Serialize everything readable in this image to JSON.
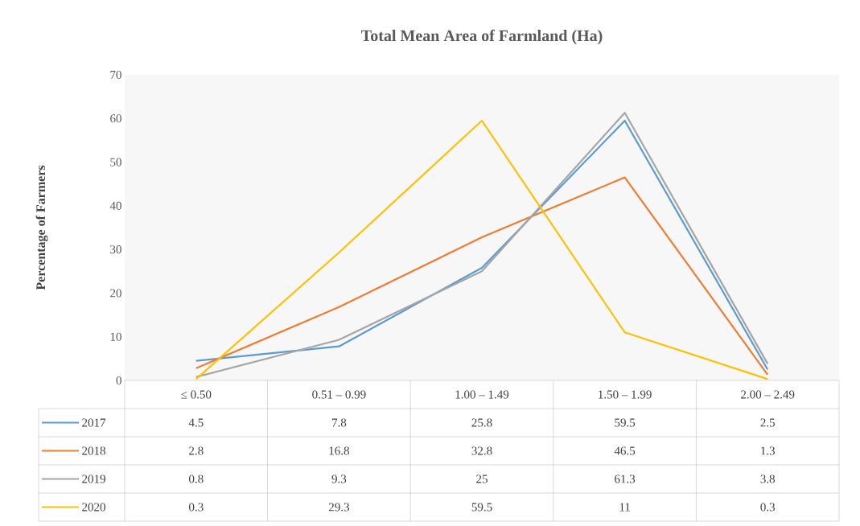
{
  "chart_data": {
    "type": "line",
    "title": "Total Mean Area of Farmland (Ha)",
    "ylabel": "Percentage of Farmers",
    "categories": [
      "≤ 0.50",
      "0.51 – 0.99",
      "1.00 – 1.49",
      "1.50 – 1.99",
      "2.00 – 2.49"
    ],
    "series": [
      {
        "name": "2017",
        "color": "#5b9bd5",
        "values": [
          4.5,
          7.8,
          25.8,
          59.5,
          2.5
        ]
      },
      {
        "name": "2018",
        "color": "#ed7d31",
        "values": [
          2.8,
          16.8,
          32.8,
          46.5,
          1.3
        ]
      },
      {
        "name": "2019",
        "color": "#a5a5a5",
        "values": [
          0.8,
          9.3,
          25,
          61.3,
          3.8
        ]
      },
      {
        "name": "2020",
        "color": "#ffc000",
        "values": [
          0.3,
          29.3,
          59.5,
          11,
          0.3
        ]
      }
    ],
    "ylim": [
      0,
      70
    ],
    "yticks": [
      0,
      10,
      20,
      30,
      40,
      50,
      60,
      70
    ],
    "grid": false,
    "legend": "bottom",
    "data_labels": true,
    "marker": "none",
    "line_style": "solid"
  }
}
